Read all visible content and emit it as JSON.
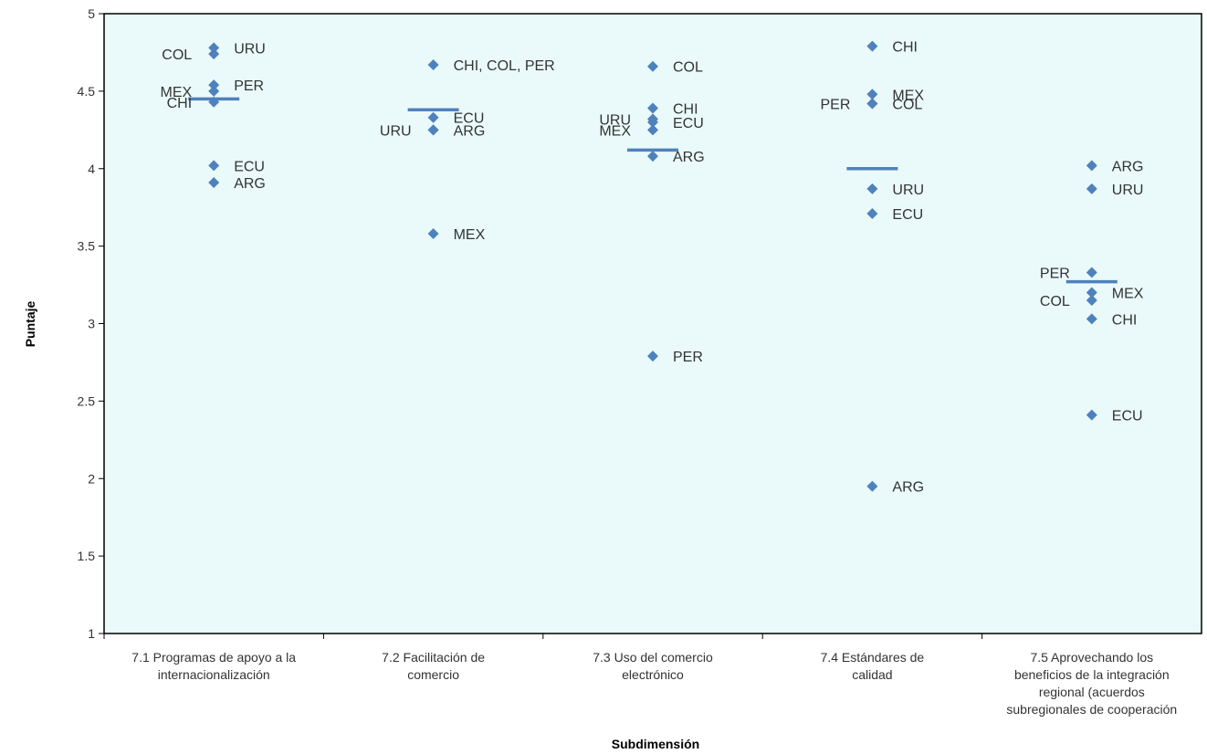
{
  "chart_data": {
    "type": "scatter",
    "xlabel": "Subdimensión",
    "ylabel": "Puntaje",
    "ylim": [
      1,
      5
    ],
    "yticks": [
      "1",
      "1.5",
      "2",
      "2.5",
      "3",
      "3.5",
      "4",
      "4.5",
      "5"
    ],
    "grid": false,
    "categories": [
      [
        "7.1 Programas de apoyo a la",
        "internacionalización"
      ],
      [
        "7.2 Facilitación de",
        "comercio"
      ],
      [
        "7.3 Uso del comercio",
        "electrónico"
      ],
      [
        "7.4 Estándares de",
        "calidad"
      ],
      [
        "7.5 Aprovechando los",
        "beneficios de la integración",
        "regional (acuerdos",
        "subregionales de cooperación"
      ]
    ],
    "points": [
      {
        "cat": 0,
        "y": 4.78,
        "label": "URU",
        "side": "right"
      },
      {
        "cat": 0,
        "y": 4.74,
        "label": "COL",
        "side": "left"
      },
      {
        "cat": 0,
        "y": 4.54,
        "label": "PER",
        "side": "right"
      },
      {
        "cat": 0,
        "y": 4.5,
        "label": "MEX",
        "side": "left"
      },
      {
        "cat": 0,
        "y": 4.43,
        "label": "CHI",
        "side": "left"
      },
      {
        "cat": 0,
        "y": 4.02,
        "label": "ECU",
        "side": "right"
      },
      {
        "cat": 0,
        "y": 3.91,
        "label": "ARG",
        "side": "right"
      },
      {
        "cat": 1,
        "y": 4.67,
        "label": "CHI, COL, PER",
        "side": "right"
      },
      {
        "cat": 1,
        "y": 4.33,
        "label": "ECU",
        "side": "right"
      },
      {
        "cat": 1,
        "y": 4.25,
        "label": "URU",
        "side": "left"
      },
      {
        "cat": 1,
        "y": 4.25,
        "label": "ARG",
        "side": "right"
      },
      {
        "cat": 1,
        "y": 3.58,
        "label": "MEX",
        "side": "right"
      },
      {
        "cat": 2,
        "y": 4.66,
        "label": "COL",
        "side": "right"
      },
      {
        "cat": 2,
        "y": 4.39,
        "label": "CHI",
        "side": "right"
      },
      {
        "cat": 2,
        "y": 4.32,
        "label": "URU",
        "side": "left"
      },
      {
        "cat": 2,
        "y": 4.3,
        "label": "ECU",
        "side": "right"
      },
      {
        "cat": 2,
        "y": 4.25,
        "label": "MEX",
        "side": "left"
      },
      {
        "cat": 2,
        "y": 4.08,
        "label": "ARG",
        "side": "right"
      },
      {
        "cat": 2,
        "y": 2.79,
        "label": "PER",
        "side": "right"
      },
      {
        "cat": 3,
        "y": 4.79,
        "label": "CHI",
        "side": "right"
      },
      {
        "cat": 3,
        "y": 4.48,
        "label": "MEX",
        "side": "right"
      },
      {
        "cat": 3,
        "y": 4.42,
        "label": "PER",
        "side": "left"
      },
      {
        "cat": 3,
        "y": 4.42,
        "label": "COL",
        "side": "right"
      },
      {
        "cat": 3,
        "y": 3.87,
        "label": "URU",
        "side": "right"
      },
      {
        "cat": 3,
        "y": 3.71,
        "label": "ECU",
        "side": "right"
      },
      {
        "cat": 3,
        "y": 1.95,
        "label": "ARG",
        "side": "right"
      },
      {
        "cat": 4,
        "y": 4.02,
        "label": "ARG",
        "side": "right"
      },
      {
        "cat": 4,
        "y": 3.87,
        "label": "URU",
        "side": "right"
      },
      {
        "cat": 4,
        "y": 3.33,
        "label": "PER",
        "side": "left"
      },
      {
        "cat": 4,
        "y": 3.2,
        "label": "MEX",
        "side": "right"
      },
      {
        "cat": 4,
        "y": 3.15,
        "label": "COL",
        "side": "left"
      },
      {
        "cat": 4,
        "y": 3.03,
        "label": "CHI",
        "side": "right"
      },
      {
        "cat": 4,
        "y": 2.41,
        "label": "ECU",
        "side": "right"
      }
    ],
    "averages": [
      4.45,
      4.38,
      4.12,
      4.0,
      3.27
    ],
    "colors": {
      "plot_bg": "#eafafa",
      "marker": "#4f81bd",
      "average_line": "#4f81bd",
      "text": "#333333",
      "axis": "#000000"
    }
  }
}
